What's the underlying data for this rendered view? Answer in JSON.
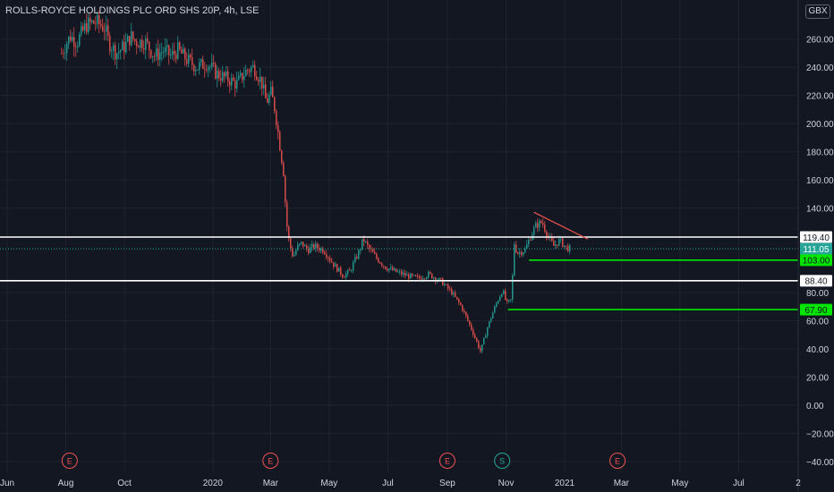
{
  "title": "ROLLS-ROYCE HOLDINGS PLC ORD SHS 20P, 4h, LSE",
  "currency": "GBX",
  "chart_data": {
    "type": "candlestick",
    "title": "ROLLS-ROYCE HOLDINGS PLC ORD SHS 20P, 4h, LSE",
    "ylim": [
      -45,
      280
    ],
    "y_ticks": [
      "260.00",
      "240.00",
      "220.00",
      "200.00",
      "180.00",
      "160.00",
      "140.00",
      "80.00",
      "60.00",
      "40.00",
      "20.00",
      "0.00",
      "−20.00",
      "−40.00"
    ],
    "y_tick_values": [
      260,
      240,
      220,
      200,
      180,
      160,
      140,
      80,
      60,
      40,
      20,
      0,
      -20,
      -40
    ],
    "x_ticks": [
      "Jun",
      "Aug",
      "Oct",
      "2020",
      "Mar",
      "May",
      "Jul",
      "Sep",
      "Nov",
      "2021",
      "Mar",
      "May",
      "Jul",
      "2"
    ],
    "x_tick_dates": [
      "2019-06-01",
      "2019-08-01",
      "2019-10-01",
      "2020-01-01",
      "2020-03-01",
      "2020-05-01",
      "2020-07-01",
      "2020-09-01",
      "2020-11-01",
      "2021-01-01",
      "2021-03-01",
      "2021-05-01",
      "2021-07-01",
      "2021-09-01"
    ],
    "price_path": [
      [
        "2019-07-27",
        250
      ],
      [
        "2019-08-05",
        262
      ],
      [
        "2019-08-12",
        258
      ],
      [
        "2019-08-22",
        270
      ],
      [
        "2019-09-01",
        272
      ],
      [
        "2019-09-10",
        268
      ],
      [
        "2019-09-14",
        258
      ],
      [
        "2019-09-22",
        250
      ],
      [
        "2019-10-01",
        255
      ],
      [
        "2019-10-07",
        262
      ],
      [
        "2019-10-12",
        258
      ],
      [
        "2019-10-22",
        258
      ],
      [
        "2019-11-01",
        248
      ],
      [
        "2019-11-10",
        252
      ],
      [
        "2019-11-18",
        248
      ],
      [
        "2019-11-25",
        252
      ],
      [
        "2019-12-05",
        245
      ],
      [
        "2019-12-15",
        240
      ],
      [
        "2019-12-25",
        243
      ],
      [
        "2020-01-05",
        235
      ],
      [
        "2020-01-15",
        232
      ],
      [
        "2020-01-25",
        228
      ],
      [
        "2020-02-05",
        238
      ],
      [
        "2020-02-12",
        240
      ],
      [
        "2020-02-20",
        230
      ],
      [
        "2020-02-25",
        215
      ],
      [
        "2020-03-01",
        222
      ],
      [
        "2020-03-05",
        210
      ],
      [
        "2020-03-09",
        190
      ],
      [
        "2020-03-12",
        175
      ],
      [
        "2020-03-14",
        165
      ],
      [
        "2020-03-17",
        130
      ],
      [
        "2020-03-20",
        115
      ],
      [
        "2020-03-24",
        105
      ],
      [
        "2020-03-28",
        112
      ],
      [
        "2020-04-02",
        115
      ],
      [
        "2020-04-08",
        110
      ],
      [
        "2020-04-15",
        113
      ],
      [
        "2020-04-25",
        110
      ],
      [
        "2020-05-05",
        100
      ],
      [
        "2020-05-15",
        92
      ],
      [
        "2020-05-22",
        95
      ],
      [
        "2020-06-01",
        110
      ],
      [
        "2020-06-05",
        118
      ],
      [
        "2020-06-10",
        112
      ],
      [
        "2020-06-18",
        105
      ],
      [
        "2020-06-28",
        98
      ],
      [
        "2020-07-08",
        95
      ],
      [
        "2020-07-20",
        92
      ],
      [
        "2020-08-01",
        90
      ],
      [
        "2020-08-12",
        93
      ],
      [
        "2020-08-25",
        88
      ],
      [
        "2020-09-05",
        80
      ],
      [
        "2020-09-15",
        70
      ],
      [
        "2020-09-25",
        55
      ],
      [
        "2020-10-01",
        45
      ],
      [
        "2020-10-05",
        38
      ],
      [
        "2020-10-12",
        55
      ],
      [
        "2020-10-20",
        70
      ],
      [
        "2020-10-28",
        82
      ],
      [
        "2020-11-01",
        72
      ],
      [
        "2020-11-06",
        75
      ],
      [
        "2020-11-09",
        115
      ],
      [
        "2020-11-12",
        108
      ],
      [
        "2020-11-20",
        110
      ],
      [
        "2020-11-26",
        120
      ],
      [
        "2020-12-02",
        128
      ],
      [
        "2020-12-08",
        130
      ],
      [
        "2020-12-14",
        120
      ],
      [
        "2020-12-20",
        113
      ],
      [
        "2020-12-26",
        117
      ],
      [
        "2021-01-02",
        112
      ],
      [
        "2021-01-06",
        111.05
      ]
    ],
    "horizontal_levels": [
      {
        "value": 119.4,
        "label": "119.40",
        "color": "#ffffff",
        "style": "resistance"
      },
      {
        "value": 111.05,
        "label": "111.05",
        "color": "#26a69a",
        "style": "last-price"
      },
      {
        "value": 103.0,
        "label": "103.00",
        "color": "#00e600",
        "style": "support",
        "from": "2020-11-25"
      },
      {
        "value": 88.4,
        "label": "88.40",
        "color": "#ffffff",
        "style": "support"
      },
      {
        "value": 67.9,
        "label": "67.90",
        "color": "#00e600",
        "style": "support",
        "from": "2020-11-03"
      }
    ],
    "trendline": {
      "from": [
        "2020-11-30",
        137
      ],
      "to": [
        "2021-01-25",
        118
      ],
      "color": "#ef5350"
    },
    "events": [
      {
        "date": "2019-08-05",
        "label": "E",
        "kind": "earnings"
      },
      {
        "date": "2020-03-01",
        "label": "E",
        "kind": "earnings"
      },
      {
        "date": "2020-09-01",
        "label": "E",
        "kind": "earnings"
      },
      {
        "date": "2020-10-28",
        "label": "S",
        "kind": "split"
      },
      {
        "date": "2021-02-25",
        "label": "E",
        "kind": "earnings"
      }
    ],
    "colors": {
      "up": "#26a69a",
      "down": "#ef5350",
      "background": "#131722",
      "grid": "#2a2e39",
      "text": "#d1d4dc"
    },
    "grid": true
  }
}
